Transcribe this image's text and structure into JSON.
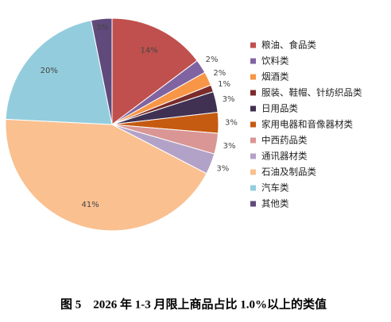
{
  "chart_data": {
    "type": "pie",
    "title": "图 5　2026 年 1-3 月限上商品占比 1.0%以上的类值",
    "categories": [
      "粮油、食品类",
      "饮料类",
      "烟酒类",
      "服装、鞋帽、针纺织品类",
      "日用品类",
      "家用电器和音像器材类",
      "中西药品类",
      "通讯器材类",
      "石油及制品类",
      "汽车类",
      "其他类"
    ],
    "values": [
      14,
      2,
      2,
      1,
      3,
      3,
      3,
      3,
      41,
      20,
      3
    ],
    "value_labels": [
      "14%",
      "2%",
      "2%",
      "1%",
      "3%",
      "3%",
      "3%",
      "3%",
      "41%",
      "20%",
      "3%"
    ],
    "colors": [
      "#c0504d",
      "#8064a2",
      "#f79646",
      "#7b2c2a",
      "#403152",
      "#c55a11",
      "#d99694",
      "#b3a2c7",
      "#fac090",
      "#93cddd",
      "#604a7b"
    ],
    "legend": "right"
  }
}
